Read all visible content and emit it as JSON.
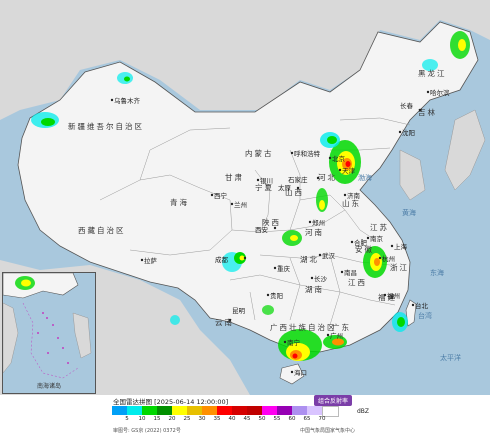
{
  "map": {
    "regions": [
      {
        "id": "xinjiang",
        "label": "新疆维吾尔自治区"
      },
      {
        "id": "xizang",
        "label": "西藏自治区"
      },
      {
        "id": "qinghai",
        "label": "青海"
      },
      {
        "id": "neimenggu",
        "label": "内蒙古"
      },
      {
        "id": "heilongjiang",
        "label": "黑龙江"
      },
      {
        "id": "jilin",
        "label": "吉林"
      },
      {
        "id": "hebei",
        "label": "河北"
      },
      {
        "id": "shanxi",
        "label": "山西"
      },
      {
        "id": "shaanxi",
        "label": "陕西"
      },
      {
        "id": "shandong",
        "label": "山东"
      },
      {
        "id": "henan",
        "label": "河南"
      },
      {
        "id": "hubei",
        "label": "湖北"
      },
      {
        "id": "hunan",
        "label": "湖南"
      },
      {
        "id": "guangdong",
        "label": "广东"
      },
      {
        "id": "guangxi",
        "label": "广西壮族自治区"
      },
      {
        "id": "gansu",
        "label": "甘肃"
      },
      {
        "id": "ningxia",
        "label": "宁夏"
      },
      {
        "id": "yunnan",
        "label": "云南"
      },
      {
        "id": "fujian",
        "label": "福建"
      },
      {
        "id": "jiangxi",
        "label": "江西"
      },
      {
        "id": "zhejiang",
        "label": "浙江"
      },
      {
        "id": "anhui",
        "label": "安徽"
      },
      {
        "id": "jiangsu",
        "label": "江苏"
      }
    ],
    "cities": [
      {
        "id": "urumqi",
        "label": "乌鲁木齐"
      },
      {
        "id": "lhasa",
        "label": "拉萨"
      },
      {
        "id": "xining",
        "label": "西宁"
      },
      {
        "id": "lanzhou",
        "label": "兰州"
      },
      {
        "id": "yinchuan",
        "label": "银川"
      },
      {
        "id": "hohhot",
        "label": "呼和浩特"
      },
      {
        "id": "beijing",
        "label": "北京"
      },
      {
        "id": "tianjin",
        "label": "天津"
      },
      {
        "id": "shijiazhuang",
        "label": "石家庄"
      },
      {
        "id": "taiyuan",
        "label": "太原"
      },
      {
        "id": "jinan",
        "label": "济南"
      },
      {
        "id": "zhengzhou",
        "label": "郑州"
      },
      {
        "id": "xian",
        "label": "西安"
      },
      {
        "id": "wuhan",
        "label": "武汉"
      },
      {
        "id": "changsha",
        "label": "长沙"
      },
      {
        "id": "nanchang",
        "label": "南昌"
      },
      {
        "id": "hefei",
        "label": "合肥"
      },
      {
        "id": "nanjing",
        "label": "南京"
      },
      {
        "id": "shanghai",
        "label": "上海"
      },
      {
        "id": "hangzhou",
        "label": "杭州"
      },
      {
        "id": "fuzhou",
        "label": "福州"
      },
      {
        "id": "taipei",
        "label": "台北"
      },
      {
        "id": "guangzhou",
        "label": "广州"
      },
      {
        "id": "nanning",
        "label": "南宁"
      },
      {
        "id": "kunming",
        "label": "昆明"
      },
      {
        "id": "guiyang",
        "label": "贵阳"
      },
      {
        "id": "chongqing",
        "label": "重庆"
      },
      {
        "id": "chengdu",
        "label": "成都"
      },
      {
        "id": "harbin",
        "label": "哈尔滨"
      },
      {
        "id": "changchun",
        "label": "长春"
      },
      {
        "id": "shenyang",
        "label": "沈阳"
      },
      {
        "id": "haikou",
        "label": "海口"
      }
    ],
    "seas": [
      {
        "id": "bohai",
        "label": "渤海"
      },
      {
        "id": "huanghai",
        "label": "黄海"
      },
      {
        "id": "donghai",
        "label": "东海"
      },
      {
        "id": "pacific",
        "label": "太平洋"
      },
      {
        "id": "taiwan",
        "label": "台湾"
      }
    ],
    "colors": {
      "sea": "#a9c8dd",
      "land": "#f4f4f4",
      "outside_land": "#d9d9d9",
      "border": "#555555"
    }
  },
  "inset": {
    "label": "南海诸岛"
  },
  "legend": {
    "title": "全国雷达拼图 [2025-06-14 12:00:00]",
    "product": "组合反射率",
    "unit": "dBZ",
    "ticks": [
      "5",
      "10",
      "15",
      "20",
      "25",
      "30",
      "35",
      "40",
      "45",
      "50",
      "55",
      "60",
      "65",
      "70"
    ],
    "colors": [
      "#01a0f6",
      "#00ecec",
      "#00d800",
      "#019000",
      "#ffff00",
      "#e7c000",
      "#ff9000",
      "#ff0000",
      "#d60000",
      "#c00000",
      "#ff00f0",
      "#9600b4",
      "#ad90f0",
      "#d9c4ff",
      "#ffffff"
    ],
    "approval": "审图号: GS京 (2022) 0372号",
    "source": "中国气象局国家气象中心"
  }
}
